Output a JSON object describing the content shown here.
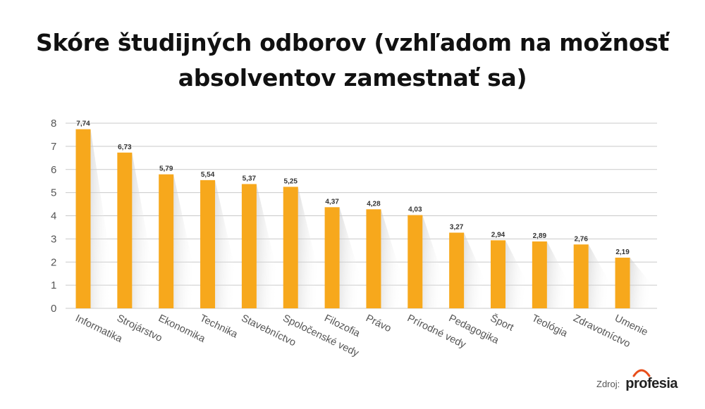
{
  "title_lines": [
    "Skóre študijných odborov (vzhľadom na možnosť",
    "absolventov zamestnať sa)"
  ],
  "source": {
    "label": "Zdroj:",
    "brand": "profesia"
  },
  "colors": {
    "bar": "#F7A81C",
    "grid": "#C9C9C9",
    "axis_text": "#555555",
    "label_text": "#333333",
    "logo_accent": "#E84E1B"
  },
  "chart_data": {
    "type": "bar",
    "categories": [
      "Informatika",
      "Strojárstvo",
      "Ekonomika",
      "Technika",
      "Stavebníctvo",
      "Spoločenské vedy",
      "Filozofia",
      "Právo",
      "Prírodné vedy",
      "Pedagogika",
      "Šport",
      "Teológia",
      "Zdravotníctvo",
      "Umenie"
    ],
    "values": [
      7.74,
      6.73,
      5.79,
      5.54,
      5.37,
      5.25,
      4.37,
      4.28,
      4.03,
      3.27,
      2.94,
      2.89,
      2.76,
      2.19
    ],
    "value_labels": [
      "7,74",
      "6,73",
      "5,79",
      "5,54",
      "5,37",
      "5,25",
      "4,37",
      "4,28",
      "4,03",
      "3,27",
      "2,94",
      "2,89",
      "2,76",
      "2,19"
    ],
    "yticks": [
      "0",
      "1",
      "2",
      "3",
      "4",
      "5",
      "6",
      "7",
      "8"
    ],
    "ylim": [
      0,
      8
    ],
    "grid": true,
    "legend": "none"
  }
}
